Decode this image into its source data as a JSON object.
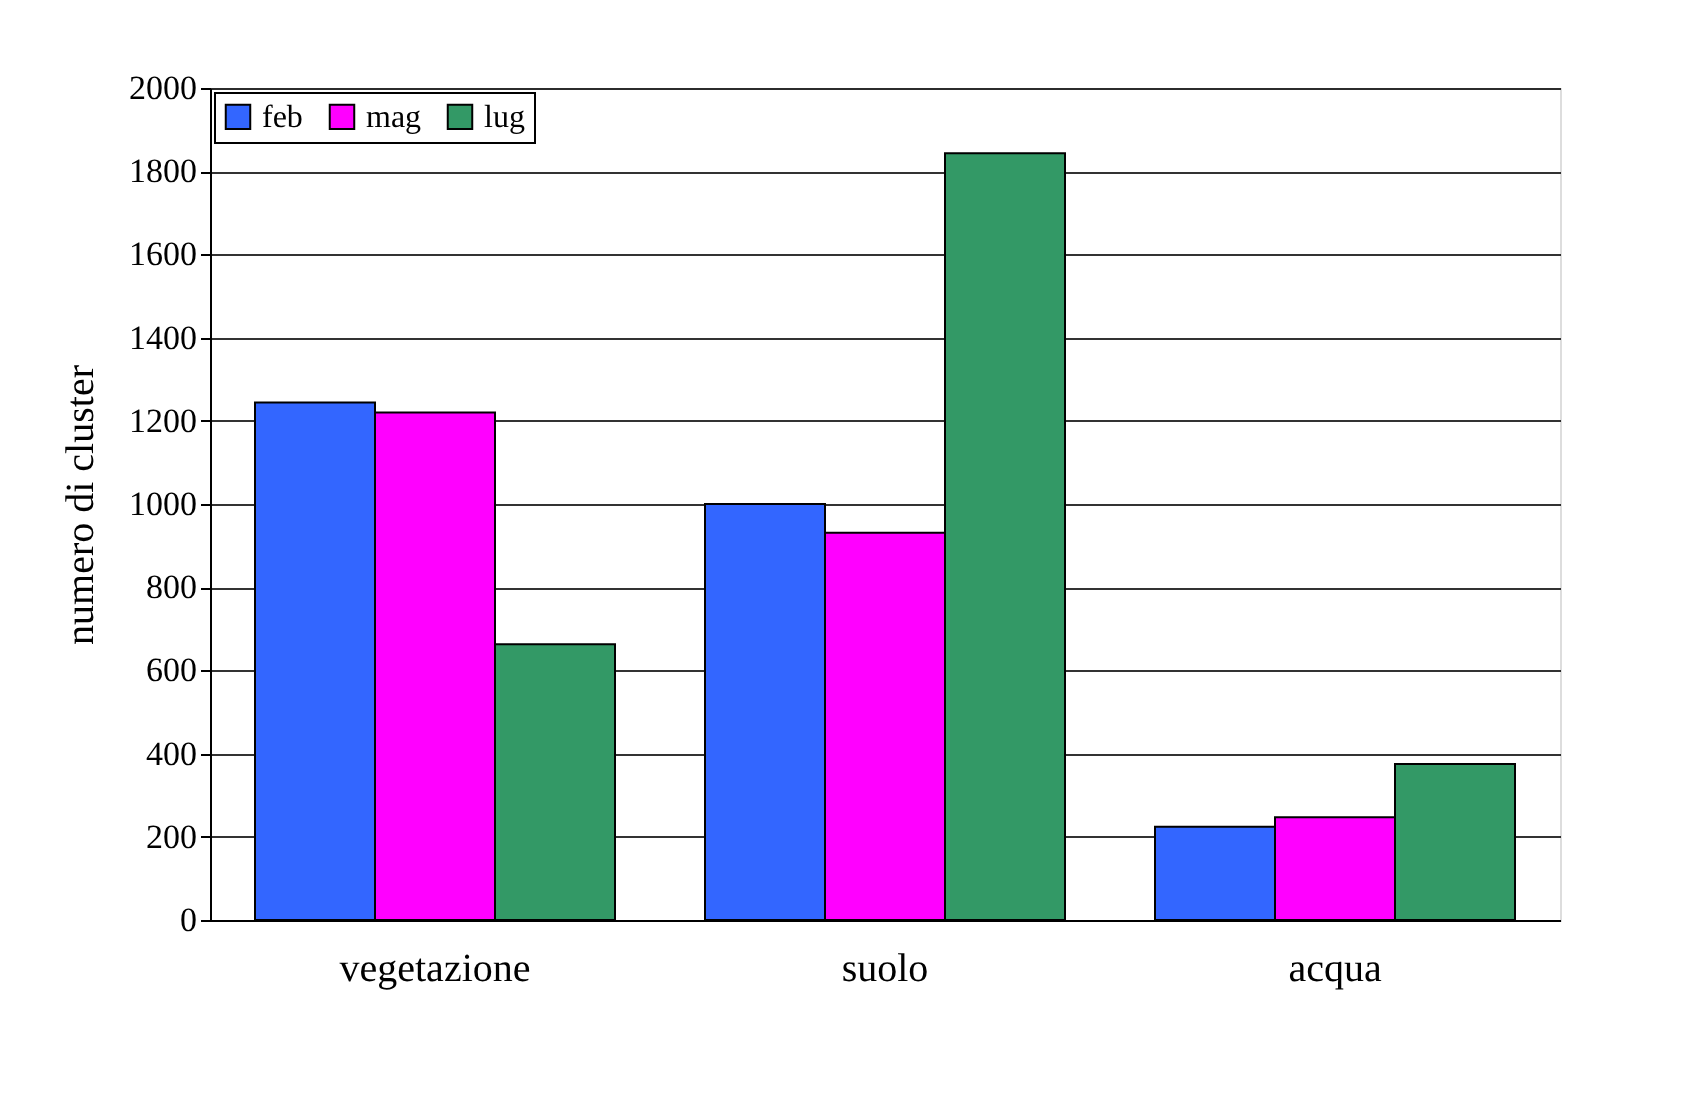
{
  "chart_data": {
    "type": "bar",
    "ylabel": "numero di cluster",
    "categories": [
      "vegetazione",
      "suolo",
      "acqua"
    ],
    "series": [
      {
        "name": "feb",
        "color": "#3366ff",
        "values": [
          1244,
          1000,
          224
        ]
      },
      {
        "name": "mag",
        "color": "#ff00ff",
        "values": [
          1220,
          931,
          247
        ]
      },
      {
        "name": "lug",
        "color": "#339966",
        "values": [
          663,
          1843,
          375
        ]
      }
    ],
    "ylim": [
      0,
      2000
    ],
    "yticks": [
      0,
      200,
      400,
      600,
      800,
      1000,
      1200,
      1400,
      1600,
      1800,
      2000
    ],
    "grid": "y",
    "legend": "top left"
  }
}
